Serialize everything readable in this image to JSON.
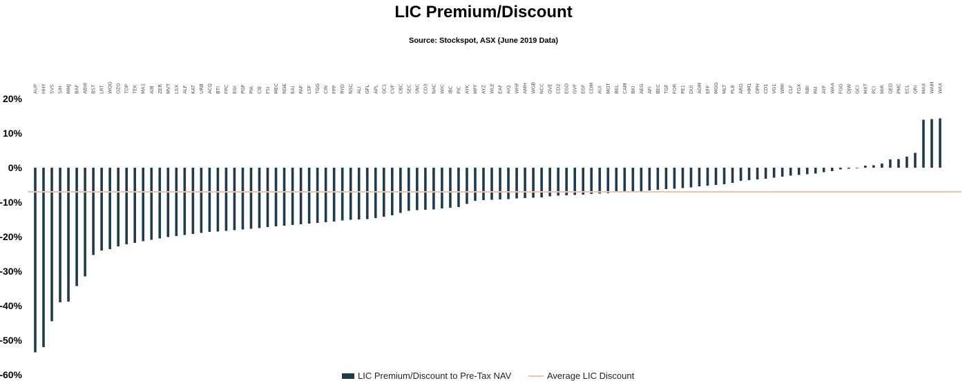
{
  "title": "LIC Premium/Discount",
  "subtitle": "Source: Stockspot, ASX (June 2019 Data)",
  "colors": {
    "bar": "#1e3a4f",
    "average_line": "#f0c4a8"
  },
  "chart_data": {
    "type": "bar",
    "title": "LIC Premium/Discount",
    "subtitle": "Source: Stockspot, ASX (June 2019 Data)",
    "xlabel": "",
    "ylabel": "",
    "ylim": [
      -60,
      20
    ],
    "y_ticks": [
      20,
      10,
      0,
      -10,
      -20,
      -30,
      -40,
      -50,
      -60
    ],
    "y_tick_labels": [
      "20%",
      "10%",
      "0%",
      "-10%",
      "-20%",
      "-30%",
      "-40%",
      "-50%",
      "-60%"
    ],
    "categories": [
      "AUP",
      "HHY",
      "SVS",
      "SIH",
      "MMJ",
      "BAF",
      "ABW",
      "BST",
      "LRT",
      "WQG",
      "OZG",
      "TOP",
      "TEK",
      "MA1",
      "AIB",
      "ZER",
      "MVT",
      "LSX",
      "ALF",
      "KAT",
      "URB",
      "ACQ",
      "BTI",
      "FPC",
      "EGI",
      "PGF",
      "PIA",
      "CIE",
      "FSI",
      "MEC",
      "NGE",
      "EAI",
      "PAF",
      "LSF",
      "TGG",
      "CIN",
      "FPP",
      "RYD",
      "NSC",
      "ALI",
      "GFL",
      "APL",
      "GC1",
      "CVF",
      "CBC",
      "SEC",
      "SNC",
      "CD3",
      "NAC",
      "WIC",
      "IBC",
      "PIC",
      "AYK",
      "MFF",
      "AYZ",
      "WLE",
      "EAF",
      "AIQ",
      "WHF",
      "AMH",
      "WGB",
      "NCC",
      "QVE",
      "CD2",
      "EGD",
      "GVF",
      "EGF",
      "CDM",
      "AUI",
      "MOT",
      "BEL",
      "CAM",
      "BKI",
      "AEG",
      "AFI",
      "BEC",
      "TGF",
      "FOR",
      "PE1",
      "DUI",
      "AGM",
      "EFF",
      "MGG",
      "MLT",
      "PL8",
      "ARG",
      "HM1",
      "OPH",
      "CD1",
      "VG1",
      "WMI",
      "CLF",
      "FGX",
      "NBI",
      "PAI",
      "AYF",
      "WAA",
      "FGG",
      "DJW",
      "GCI",
      "MXT",
      "PCI",
      "MIR",
      "QED",
      "PMC",
      "ECL",
      "QRI",
      "MAX",
      "WAM",
      "WAX"
    ],
    "series": [
      {
        "name": "LIC Premium/Discount to Pre-Tax NAV",
        "values": [
          -53.5,
          -52,
          -44.5,
          -39,
          -38.8,
          -34.3,
          -31.5,
          -25.3,
          -24,
          -23.6,
          -22.8,
          -22.2,
          -21.8,
          -21.3,
          -20.9,
          -20.5,
          -20.1,
          -19.8,
          -19.5,
          -19.2,
          -18.9,
          -18.6,
          -18.5,
          -18.3,
          -18.1,
          -17.9,
          -17.7,
          -17.5,
          -17.2,
          -17,
          -16.8,
          -16.6,
          -16.4,
          -16.2,
          -16,
          -15.8,
          -15.6,
          -15.3,
          -15.1,
          -15,
          -14.9,
          -14.6,
          -14.2,
          -13.8,
          -13.1,
          -12.5,
          -12.3,
          -12.2,
          -12.1,
          -11.8,
          -11.6,
          -11.4,
          -10.5,
          -9.6,
          -9.4,
          -9.3,
          -9.2,
          -9.1,
          -8.9,
          -8.8,
          -8.7,
          -8.6,
          -8.3,
          -8.1,
          -8,
          -7.9,
          -7.8,
          -7.6,
          -7.5,
          -7.4,
          -7.2,
          -7,
          -6.9,
          -6.8,
          -6.6,
          -6.4,
          -6.2,
          -6.1,
          -5.9,
          -5.7,
          -5.4,
          -5.2,
          -5,
          -4.8,
          -4.4,
          -3.8,
          -3.6,
          -3.4,
          -3.2,
          -2.9,
          -2.6,
          -2.3,
          -2.1,
          -1.9,
          -1.7,
          -1.3,
          -1,
          -0.5,
          -0.3,
          0,
          0.6,
          0.7,
          1.2,
          2.4,
          2.5,
          3.2,
          4.3,
          13.9,
          14.1,
          14.3
        ]
      },
      {
        "name": "Average LIC Discount",
        "type": "line",
        "value": -7
      }
    ],
    "legend": {
      "placement": "bottom-center",
      "entries": [
        "LIC Premium/Discount to Pre-Tax NAV",
        "Average LIC Discount"
      ]
    },
    "grid": false
  }
}
